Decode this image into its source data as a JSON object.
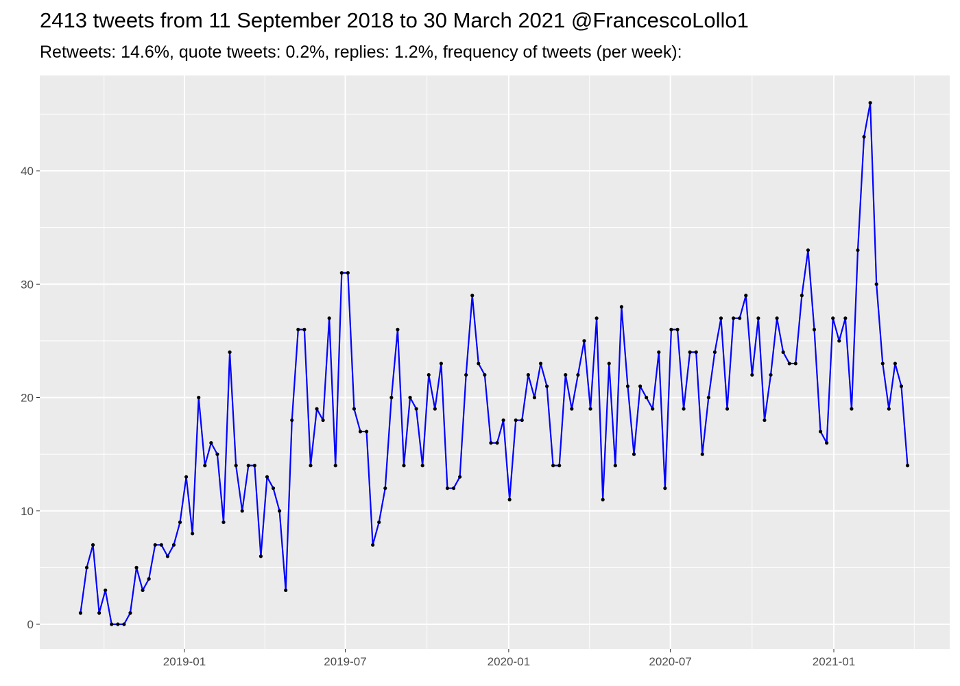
{
  "chart_data": {
    "type": "line",
    "title": "2413 tweets from 11 September 2018 to 30 March 2021 @FrancescoLollo1",
    "subtitle": "Retweets: 14.6%, quote tweets: 0.2%, replies: 1.2%, frequency of tweets (per week):",
    "xlabel": "",
    "ylabel": "",
    "x_ticks": [
      "2019-01",
      "2019-07",
      "2020-01",
      "2020-07",
      "2021-01"
    ],
    "y_ticks": [
      0,
      10,
      20,
      30,
      40
    ],
    "ylim": [
      -2.2,
      48.2
    ],
    "xlim": [
      "2018-08-09",
      "2021-04-16"
    ],
    "grid": true,
    "legend": "none",
    "line_color": "#0000ff",
    "point_color": "#000000",
    "panel_background": "#ebebeb",
    "x": [
      "2018-09-06",
      "2018-09-13",
      "2018-09-20",
      "2018-09-27",
      "2018-10-04",
      "2018-10-11",
      "2018-10-18",
      "2018-10-25",
      "2018-11-01",
      "2018-11-08",
      "2018-11-15",
      "2018-11-22",
      "2018-11-29",
      "2018-12-06",
      "2018-12-13",
      "2018-12-20",
      "2018-12-27",
      "2019-01-03",
      "2019-01-10",
      "2019-01-17",
      "2019-01-24",
      "2019-01-31",
      "2019-02-07",
      "2019-02-14",
      "2019-02-21",
      "2019-02-28",
      "2019-03-07",
      "2019-03-14",
      "2019-03-21",
      "2019-03-28",
      "2019-04-04",
      "2019-04-11",
      "2019-04-18",
      "2019-04-25",
      "2019-05-02",
      "2019-05-09",
      "2019-05-16",
      "2019-05-23",
      "2019-05-30",
      "2019-06-06",
      "2019-06-13",
      "2019-06-20",
      "2019-06-27",
      "2019-07-04",
      "2019-07-11",
      "2019-07-18",
      "2019-07-25",
      "2019-08-01",
      "2019-08-08",
      "2019-08-15",
      "2019-08-22",
      "2019-08-29",
      "2019-09-05",
      "2019-09-12",
      "2019-09-19",
      "2019-09-26",
      "2019-10-03",
      "2019-10-10",
      "2019-10-17",
      "2019-10-24",
      "2019-10-31",
      "2019-11-07",
      "2019-11-14",
      "2019-11-21",
      "2019-11-28",
      "2019-12-05",
      "2019-12-12",
      "2019-12-19",
      "2019-12-26",
      "2020-01-02",
      "2020-01-09",
      "2020-01-16",
      "2020-01-23",
      "2020-01-30",
      "2020-02-06",
      "2020-02-13",
      "2020-02-20",
      "2020-02-27",
      "2020-03-05",
      "2020-03-12",
      "2020-03-19",
      "2020-03-26",
      "2020-04-02",
      "2020-04-09",
      "2020-04-16",
      "2020-04-23",
      "2020-04-30",
      "2020-05-07",
      "2020-05-14",
      "2020-05-21",
      "2020-05-28",
      "2020-06-04",
      "2020-06-11",
      "2020-06-18",
      "2020-06-25",
      "2020-07-02",
      "2020-07-09",
      "2020-07-16",
      "2020-07-23",
      "2020-07-30",
      "2020-08-06",
      "2020-08-13",
      "2020-08-20",
      "2020-08-27",
      "2020-09-03",
      "2020-09-10",
      "2020-09-17",
      "2020-09-24",
      "2020-10-01",
      "2020-10-08",
      "2020-10-15",
      "2020-10-22",
      "2020-10-29",
      "2020-11-05",
      "2020-11-12",
      "2020-11-19",
      "2020-11-26",
      "2020-12-03",
      "2020-12-10",
      "2020-12-17",
      "2020-12-24",
      "2020-12-31",
      "2021-01-07",
      "2021-01-14",
      "2021-01-21",
      "2021-01-28",
      "2021-02-04",
      "2021-02-11",
      "2021-02-18",
      "2021-02-25",
      "2021-03-04",
      "2021-03-11",
      "2021-03-18",
      "2021-03-25"
    ],
    "y": [
      1,
      5,
      7,
      1,
      3,
      0,
      0,
      0,
      1,
      5,
      3,
      4,
      7,
      7,
      6,
      7,
      9,
      13,
      8,
      20,
      14,
      16,
      15,
      9,
      24,
      14,
      10,
      14,
      14,
      6,
      13,
      12,
      10,
      3,
      18,
      26,
      26,
      14,
      19,
      18,
      27,
      14,
      31,
      31,
      19,
      17,
      17,
      7,
      9,
      12,
      20,
      26,
      14,
      20,
      19,
      14,
      22,
      19,
      23,
      12,
      12,
      13,
      22,
      29,
      23,
      22,
      16,
      16,
      18,
      11,
      18,
      18,
      22,
      20,
      23,
      21,
      14,
      14,
      22,
      19,
      22,
      25,
      19,
      27,
      11,
      23,
      14,
      28,
      21,
      15,
      21,
      20,
      19,
      24,
      12,
      26,
      26,
      19,
      24,
      24,
      15,
      20,
      24,
      27,
      19,
      27,
      27,
      29,
      22,
      27,
      18,
      22,
      27,
      24,
      23,
      23,
      29,
      33,
      26,
      17,
      16,
      27,
      25,
      27,
      19,
      33,
      43,
      46,
      30,
      23,
      19,
      23,
      21,
      14
    ]
  }
}
